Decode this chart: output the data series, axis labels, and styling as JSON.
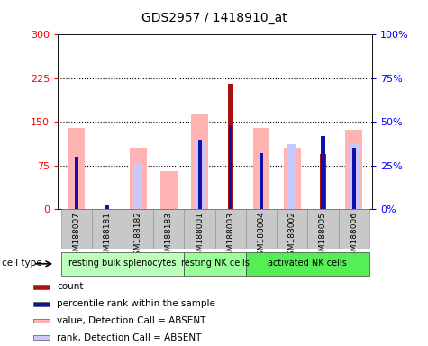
{
  "title": "GDS2957 / 1418910_at",
  "samples": [
    "GSM188007",
    "GSM188181",
    "GSM188182",
    "GSM188183",
    "GSM188001",
    "GSM188003",
    "GSM188004",
    "GSM188002",
    "GSM188005",
    "GSM188006"
  ],
  "count_values": [
    0,
    0,
    0,
    0,
    0,
    215,
    0,
    0,
    95,
    0
  ],
  "percentile_rank_pct": [
    30,
    2,
    0,
    0,
    40,
    48,
    32,
    0,
    42,
    35
  ],
  "value_absent": [
    140,
    0,
    105,
    65,
    163,
    0,
    140,
    105,
    0,
    137
  ],
  "rank_absent": [
    0,
    0,
    78,
    0,
    118,
    0,
    0,
    112,
    0,
    112
  ],
  "cell_type_groups": [
    {
      "label": "resting bulk splenocytes",
      "start": 0,
      "end": 4,
      "color": "#bbffbb"
    },
    {
      "label": "resting NK cells",
      "start": 4,
      "end": 6,
      "color": "#99ff99"
    },
    {
      "label": "activated NK cells",
      "start": 6,
      "end": 10,
      "color": "#55ee55"
    }
  ],
  "ylim_left": [
    0,
    300
  ],
  "ylim_right": [
    0,
    100
  ],
  "yticks_left": [
    0,
    75,
    150,
    225,
    300
  ],
  "yticks_right": [
    0,
    25,
    50,
    75,
    100
  ],
  "yticklabels_left": [
    "0",
    "75",
    "150",
    "225",
    "300"
  ],
  "yticklabels_right": [
    "0%",
    "25%",
    "50%",
    "75%",
    "100%"
  ],
  "color_count": "#aa1111",
  "color_percentile": "#1111aa",
  "color_value_absent": "#ffb3b3",
  "color_rank_absent": "#c8c8ff",
  "grid_color": "black",
  "bg_color": "#c8c8c8",
  "plot_bg": "white",
  "cell_type_label": "cell type",
  "legend_items": [
    {
      "label": "count",
      "color": "#aa1111"
    },
    {
      "label": "percentile rank within the sample",
      "color": "#1111aa"
    },
    {
      "label": "value, Detection Call = ABSENT",
      "color": "#ffb3b3"
    },
    {
      "label": "rank, Detection Call = ABSENT",
      "color": "#c8c8ff"
    }
  ]
}
